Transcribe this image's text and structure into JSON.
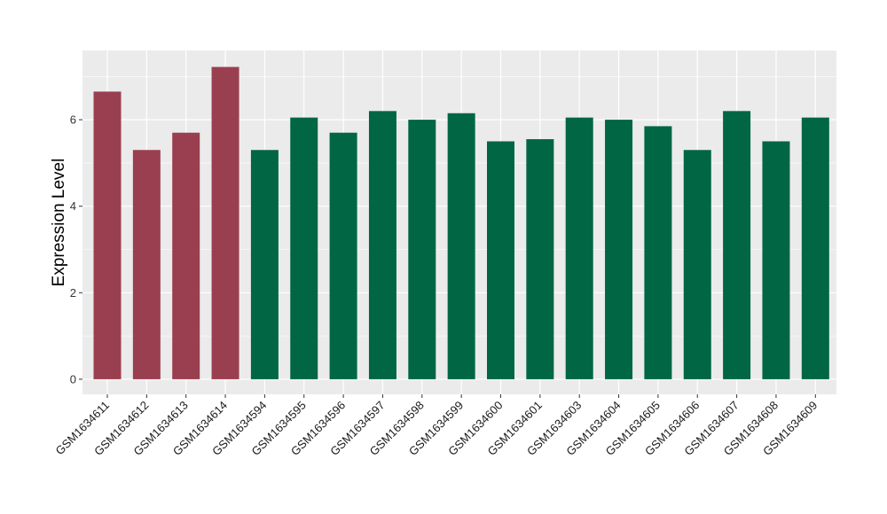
{
  "chart_data": {
    "type": "bar",
    "title": "",
    "xlabel": "",
    "ylabel": "Expression Level",
    "ylim": [
      -0.35,
      7.6
    ],
    "yticks": [
      0,
      2,
      4,
      6
    ],
    "grid": true,
    "legend": "none",
    "categories": [
      "GSM1634611",
      "GSM1634612",
      "GSM1634613",
      "GSM1634614",
      "GSM1634594",
      "GSM1634595",
      "GSM1634596",
      "GSM1634597",
      "GSM1634598",
      "GSM1634599",
      "GSM1634600",
      "GSM1634601",
      "GSM1634603",
      "GSM1634604",
      "GSM1634605",
      "GSM1634606",
      "GSM1634607",
      "GSM1634608",
      "GSM1634609"
    ],
    "values": [
      6.65,
      5.3,
      5.7,
      7.22,
      5.3,
      6.05,
      5.7,
      6.2,
      6.0,
      6.15,
      5.5,
      5.55,
      6.05,
      6.0,
      5.85,
      5.3,
      6.2,
      5.5,
      6.05
    ],
    "groups": [
      0,
      0,
      0,
      0,
      1,
      1,
      1,
      1,
      1,
      1,
      1,
      1,
      1,
      1,
      1,
      1,
      1,
      1,
      1
    ],
    "colors": {
      "group_0": "#9a3f4f",
      "group_1": "#006644",
      "panel": "#ebebeb",
      "grid": "#ffffff"
    }
  }
}
